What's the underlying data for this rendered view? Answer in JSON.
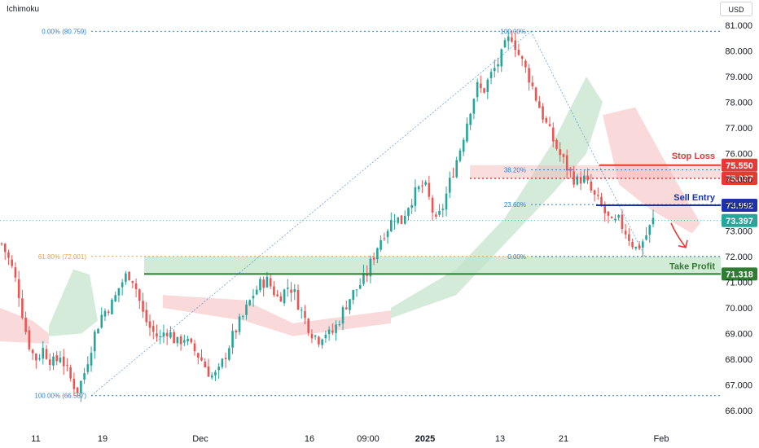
{
  "header": {
    "indicator": "Ichimoku",
    "currency": "USD"
  },
  "colors": {
    "up": "#26a69a",
    "down": "#ef5350",
    "fib": "#2a7fd4",
    "fib_orange": "#e8a23a",
    "stop": "#e53935",
    "entry": "#1e32a8",
    "current": "#26a69a",
    "profit": "#2e7d32",
    "kumo_green": "#cfe9d6",
    "kumo_red": "#f7cfcf"
  },
  "chart_data": {
    "type": "candlestick",
    "y_axis": {
      "min": 65.5,
      "max": 81.5,
      "ticks": [
        "81.000",
        "80.000",
        "79.000",
        "78.000",
        "77.000",
        "76.000",
        "75.000",
        "74.000",
        "73.000",
        "72.000",
        "71.000",
        "70.000",
        "69.000",
        "68.000",
        "67.000",
        "66.000"
      ]
    },
    "x_axis": {
      "ticks": [
        "11",
        "19",
        "Dec",
        "16",
        "09:00",
        "2025",
        "13",
        "21",
        "Feb"
      ]
    },
    "series_close_path": [
      72.5,
      72.0,
      71.4,
      70.5,
      69.2,
      68.3,
      68.0,
      68.4,
      68.1,
      67.8,
      68.2,
      67.6,
      67.1,
      66.8,
      67.4,
      68.3,
      69.1,
      69.7,
      70.0,
      70.2,
      70.8,
      71.2,
      71.35,
      70.7,
      69.8,
      69.3,
      69.0,
      68.8,
      69.2,
      68.9,
      68.6,
      68.9,
      68.5,
      68.3,
      68.0,
      67.6,
      67.3,
      67.5,
      68.1,
      68.7,
      69.2,
      69.6,
      70.1,
      70.6,
      70.9,
      71.1,
      70.8,
      70.4,
      70.6,
      70.9,
      70.5,
      69.9,
      69.4,
      69.0,
      68.8,
      69.1,
      68.9,
      69.3,
      69.8,
      70.3,
      70.6,
      70.9,
      71.2,
      71.8,
      72.4,
      72.9,
      73.2,
      73.6,
      73.3,
      73.9,
      74.3,
      74.6,
      74.8,
      74.1,
      73.3,
      73.8,
      74.6,
      75.4,
      76.1,
      77.0,
      77.9,
      78.6,
      78.4,
      78.9,
      79.3,
      79.7,
      80.3,
      80.6,
      79.9,
      79.4,
      78.9,
      78.2,
      77.6,
      77.0,
      76.5,
      76.0,
      75.6,
      75.2,
      74.9,
      75.1,
      74.7,
      74.3,
      74.0,
      73.6,
      73.2,
      73.4,
      73.1,
      72.7,
      72.3,
      72.5,
      72.9,
      73.4
    ],
    "fib_levels": [
      {
        "label": "0.00% (80.759)",
        "value": 80.759
      },
      {
        "label": "61.80% (72.001)",
        "value": 72.001
      },
      {
        "label": "100.00% (66.587)",
        "value": 66.587
      },
      {
        "label": "100.00%",
        "value": 80.759
      },
      {
        "label": "38.20%",
        "value": 75.37
      },
      {
        "label": "23.60%",
        "value": 74.02
      },
      {
        "label": "0.00%",
        "value": 72.0
      }
    ],
    "levels": [
      {
        "name": "Stop Loss",
        "value": 75.55,
        "price_label": "75.550"
      },
      {
        "name": "",
        "value": 75.037,
        "price_label": "75.037"
      },
      {
        "name": "Sell Entry",
        "value": 73.992,
        "price_label": "73.992"
      },
      {
        "name": "",
        "value": 73.397,
        "price_label": "73.397"
      },
      {
        "name": "Take Profit",
        "value": 71.318,
        "price_label": "71.318"
      }
    ]
  }
}
